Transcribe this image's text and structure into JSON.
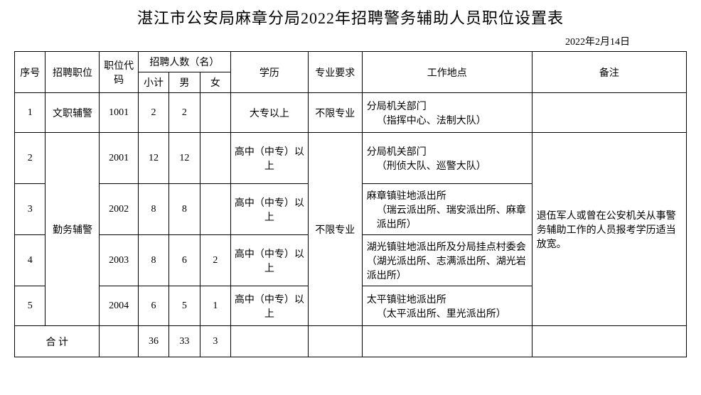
{
  "title": "湛江市公安局麻章分局2022年招聘警务辅助人员职位设置表",
  "date": "2022年2月14日",
  "headers": {
    "seq": "序号",
    "position": "招聘职位",
    "code": "职位代码",
    "count_group": "招聘人数（名）",
    "subtotal": "小计",
    "male": "男",
    "female": "女",
    "education": "学历",
    "major": "专业要求",
    "location": "工作地点",
    "notes": "备注"
  },
  "rows": [
    {
      "seq": "1",
      "position": "文职辅警",
      "code": "1001",
      "subtotal": "2",
      "male": "2",
      "female": "",
      "education": "大专以上",
      "major": "不限专业",
      "loc_main": "分局机关部门",
      "loc_sub": "（指挥中心、法制大队）",
      "notes": ""
    },
    {
      "seq": "2",
      "position": "勤务辅警",
      "code": "2001",
      "subtotal": "12",
      "male": "12",
      "female": "",
      "education": "高中（中专）以上",
      "major": "不限专业",
      "loc_main": "分局机关部门",
      "loc_sub": "（刑侦大队、巡警大队）"
    },
    {
      "seq": "3",
      "code": "2002",
      "subtotal": "8",
      "male": "8",
      "female": "",
      "education": "高中（中专）以上",
      "loc_main": "麻章镇驻地派出所",
      "loc_sub": "（瑞云派出所、瑞安派出所、麻章派出所）"
    },
    {
      "seq": "4",
      "code": "2003",
      "subtotal": "8",
      "male": "6",
      "female": "2",
      "education": "高中（中专）以上",
      "loc_main": "湖光镇驻地派出所及分局挂点村委会（湖光派出所、志满派出所、湖光岩派出所）",
      "loc_sub": ""
    },
    {
      "seq": "5",
      "code": "2004",
      "subtotal": "6",
      "male": "5",
      "female": "1",
      "education": "高中（中专）以上",
      "loc_main": "太平镇驻地派出所",
      "loc_sub": "（太平派出所、里光派出所）"
    }
  ],
  "merged_note": "退伍军人或曾在公安机关从事警务辅助工作的人员报考学历适当放宽。",
  "total": {
    "label": "合 计",
    "subtotal": "36",
    "male": "33",
    "female": "3"
  }
}
